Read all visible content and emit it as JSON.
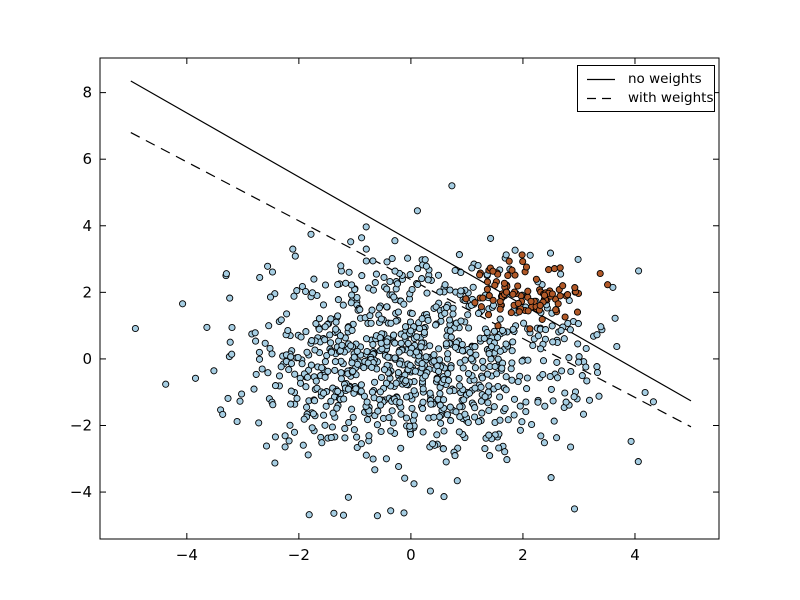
{
  "chart_data": {
    "type": "scatter",
    "title": "",
    "xlabel": "",
    "ylabel": "",
    "grid": false,
    "figure_background": "#ffffff",
    "axis_color": "#000000",
    "xlim": [
      -5.55,
      5.5
    ],
    "ylim": [
      -5.41,
      9.04
    ],
    "xticks": [
      {
        "value": -4,
        "label": "−4"
      },
      {
        "value": -2,
        "label": "−2"
      },
      {
        "value": 0,
        "label": "0"
      },
      {
        "value": 2,
        "label": "2"
      },
      {
        "value": 4,
        "label": "4"
      }
    ],
    "yticks": [
      {
        "value": 8,
        "label": "8"
      },
      {
        "value": 6,
        "label": "6"
      },
      {
        "value": 4,
        "label": "4"
      },
      {
        "value": 2,
        "label": "2"
      },
      {
        "value": 0,
        "label": "0"
      },
      {
        "value": -2,
        "label": "−2"
      },
      {
        "value": -4,
        "label": "−4"
      }
    ],
    "legend": {
      "position": "upper-right",
      "border_color": "#000000",
      "background": "#ffffff",
      "entries": [
        {
          "label": "no weights",
          "line_style": "solid",
          "color": "#000000"
        },
        {
          "label": "with weights",
          "line_style": "dashed",
          "color": "#000000"
        }
      ]
    },
    "lines": [
      {
        "name": "no-weights-boundary",
        "style": "solid",
        "color": "#000000",
        "points": [
          [
            -5,
            8.35
          ],
          [
            5,
            -1.26
          ]
        ]
      },
      {
        "name": "with-weights-boundary",
        "style": "dashed",
        "color": "#000000",
        "points": [
          [
            -5,
            6.8
          ],
          [
            5,
            -2.04
          ]
        ]
      }
    ],
    "series": [
      {
        "name": "class-0",
        "n": 1000,
        "center": [
          0,
          0
        ],
        "std": 1.5,
        "fill": "#a6cee3",
        "edge": "#000000",
        "seed": 42
      },
      {
        "name": "class-1",
        "n": 100,
        "center": [
          2,
          2
        ],
        "std": 0.5,
        "fill": "#b15928",
        "edge": "#000000",
        "seed": 7
      }
    ],
    "marker_diameter_px": 7
  }
}
